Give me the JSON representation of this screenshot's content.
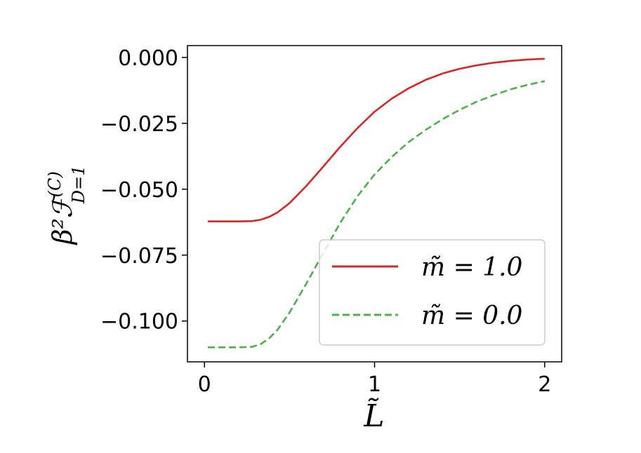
{
  "chart_data": {
    "type": "line",
    "xlabel": "L̃",
    "ylabel": "β²ℱ",
    "ylabel_sup": "(C)",
    "ylabel_sub": "D=1",
    "xlim": [
      -0.1,
      2.1
    ],
    "ylim": [
      -0.1155,
      0.0045
    ],
    "x_ticks": [
      0,
      1,
      2
    ],
    "x_tick_labels": [
      "0",
      "1",
      "2"
    ],
    "y_ticks": [
      0.0,
      -0.025,
      -0.05,
      -0.075,
      -0.1
    ],
    "y_tick_labels": [
      "0.000",
      "−0.025",
      "−0.050",
      "−0.075",
      "−0.100"
    ],
    "grid": false,
    "legend_position": "lower-right",
    "series": [
      {
        "name": "m̃ = 1.0",
        "color": "#d62728",
        "style": "solid",
        "x": [
          0.02,
          0.1,
          0.2,
          0.28,
          0.33,
          0.38,
          0.43,
          0.5,
          0.6,
          0.7,
          0.8,
          0.9,
          1.0,
          1.1,
          1.2,
          1.3,
          1.4,
          1.5,
          1.6,
          1.7,
          1.8,
          1.9,
          2.0
        ],
        "y": [
          -0.0622,
          -0.0622,
          -0.0622,
          -0.0621,
          -0.0616,
          -0.0605,
          -0.0588,
          -0.0553,
          -0.0487,
          -0.0413,
          -0.0338,
          -0.0268,
          -0.0206,
          -0.0157,
          -0.0117,
          -0.0085,
          -0.0061,
          -0.0043,
          -0.003,
          -0.002,
          -0.0013,
          -0.0008,
          -0.0005
        ]
      },
      {
        "name": "m̃ = 0.0",
        "color": "#4daf4a",
        "style": "dashed",
        "x": [
          0.02,
          0.1,
          0.2,
          0.28,
          0.33,
          0.38,
          0.43,
          0.5,
          0.6,
          0.7,
          0.8,
          0.9,
          1.0,
          1.1,
          1.2,
          1.3,
          1.4,
          1.5,
          1.6,
          1.7,
          1.8,
          1.9,
          2.0
        ],
        "y": [
          -0.11,
          -0.11,
          -0.11,
          -0.1098,
          -0.1088,
          -0.1066,
          -0.1033,
          -0.0968,
          -0.0857,
          -0.074,
          -0.0626,
          -0.0526,
          -0.0444,
          -0.0378,
          -0.0321,
          -0.0275,
          -0.0234,
          -0.0199,
          -0.0168,
          -0.0143,
          -0.0121,
          -0.0104,
          -0.009
        ]
      }
    ]
  }
}
